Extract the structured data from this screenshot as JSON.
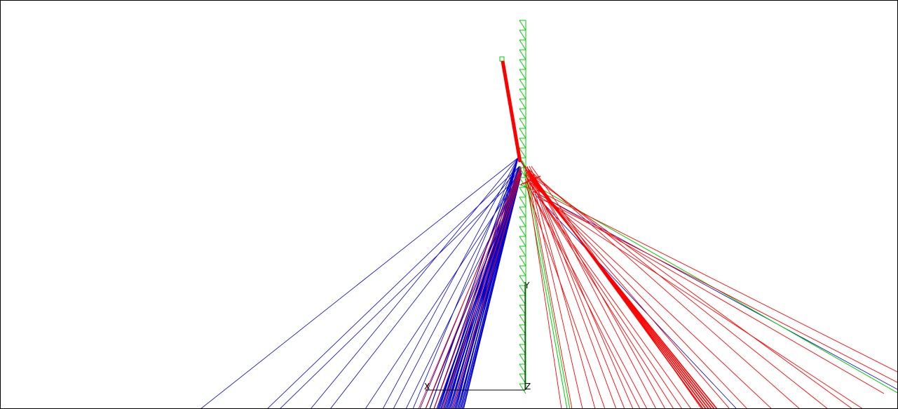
{
  "axes": {
    "y_label": "Y",
    "x_label": "X",
    "z_label": "Z"
  },
  "colors": {
    "background": "#ffffff",
    "border": "#000000",
    "blue_cables": "#0000cc",
    "red_cables": "#ff0000",
    "green_members": "#00cc00",
    "axis": "#000000",
    "axis_x_label": "#6b2a2a"
  }
}
